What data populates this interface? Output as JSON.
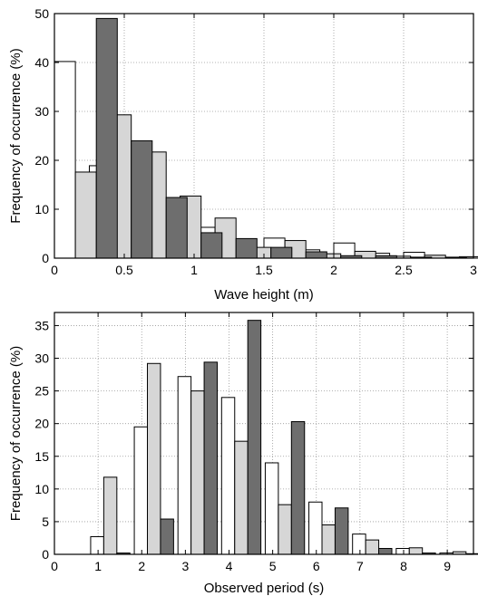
{
  "chart_data": [
    {
      "type": "bar",
      "xlabel": "Wave height (m)",
      "ylabel": "Frequency of occurrence (%)",
      "xlim": [
        0,
        3
      ],
      "ylim": [
        0,
        50
      ],
      "grid": true,
      "bin_width": 0.15,
      "x_ticks": [
        0,
        0.5,
        1,
        1.5,
        2,
        2.5,
        3
      ],
      "x_tick_labels": [
        "0",
        "0.5",
        "1",
        "1.5",
        "2",
        "2.5",
        "3"
      ],
      "y_ticks": [
        0,
        10,
        20,
        30,
        40,
        50
      ],
      "y_tick_labels": [
        "0",
        "10",
        "20",
        "30",
        "40",
        "50"
      ],
      "bin_starts": [
        0,
        0.25,
        0.5,
        0.75,
        1,
        1.25,
        1.5,
        1.75,
        2,
        2.25,
        2.5,
        2.75
      ],
      "series": [
        {
          "color": "#ffffff",
          "values": [
            40.2,
            18.9,
            11.6,
            6.9,
            6.3,
            3.2,
            4.1,
            1.7,
            3.1,
            1.0,
            1.2,
            0.2
          ]
        },
        {
          "color": "#d6d6d6",
          "values": [
            17.6,
            29.3,
            21.7,
            12.7,
            8.2,
            2.2,
            3.6,
            0.9,
            1.4,
            0.4,
            0.6,
            0.3
          ]
        },
        {
          "color": "#6e6e6e",
          "values": [
            49.0,
            24.0,
            12.4,
            5.2,
            4.0,
            2.2,
            1.3,
            0.5,
            0.5,
            0.2,
            0.1,
            0.1
          ]
        }
      ]
    },
    {
      "type": "bar",
      "xlabel": "Observed period (s)",
      "ylabel": "Frequency of occurrence (%)",
      "xlim": [
        0,
        9.6
      ],
      "ylim": [
        0,
        37
      ],
      "grid": true,
      "bin_width": 0.3,
      "x_ticks": [
        0,
        1,
        2,
        3,
        4,
        5,
        6,
        7,
        8,
        9
      ],
      "x_tick_labels": [
        "0",
        "1",
        "2",
        "3",
        "4",
        "5",
        "6",
        "7",
        "8",
        "9"
      ],
      "y_ticks": [
        0,
        5,
        10,
        15,
        20,
        25,
        30,
        35
      ],
      "y_tick_labels": [
        "0",
        "5",
        "10",
        "15",
        "20",
        "25",
        "30",
        "35"
      ],
      "bin_starts": [
        0.83,
        1.83,
        2.83,
        3.83,
        4.83,
        5.83,
        6.83,
        7.83,
        8.83
      ],
      "series": [
        {
          "color": "#ffffff",
          "values": [
            2.7,
            19.5,
            27.2,
            24.0,
            14.0,
            8.0,
            3.1,
            0.9,
            0.2
          ]
        },
        {
          "color": "#d6d6d6",
          "values": [
            11.8,
            29.2,
            25.0,
            17.3,
            7.6,
            4.5,
            2.2,
            1.0,
            0.4
          ]
        },
        {
          "color": "#6e6e6e",
          "values": [
            0.2,
            5.4,
            29.4,
            35.8,
            20.3,
            7.1,
            0.9,
            0.2,
            0.1
          ]
        }
      ]
    }
  ]
}
